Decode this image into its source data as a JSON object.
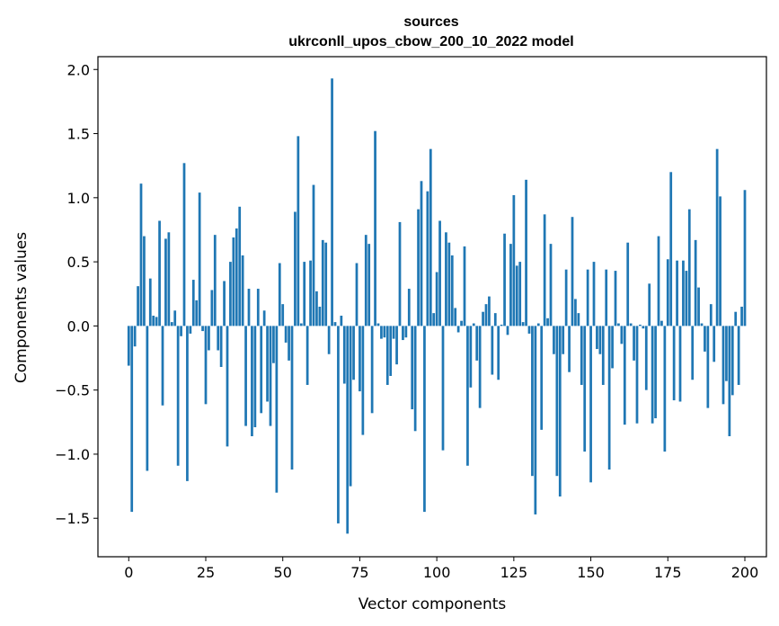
{
  "chart_data": {
    "type": "bar",
    "title": "sources",
    "subtitle": "ukrconll_upos_cbow_200_10_2022 model",
    "xlabel": "Vector components",
    "ylabel": "Components values",
    "xlim": [
      -10,
      207
    ],
    "ylim": [
      -1.8,
      2.1
    ],
    "xticks": [
      0,
      25,
      50,
      75,
      100,
      125,
      150,
      175,
      200
    ],
    "yticks": [
      -1.5,
      -1.0,
      -0.5,
      0.0,
      0.5,
      1.0,
      1.5,
      2.0
    ],
    "xtick_labels": [
      "0",
      "25",
      "50",
      "75",
      "100",
      "125",
      "150",
      "175",
      "200"
    ],
    "ytick_labels": [
      "−1.5",
      "−1.0",
      "−0.5",
      "0.0",
      "0.5",
      "1.0",
      "1.5",
      "2.0"
    ],
    "bar_color": "#1f77b4",
    "values": [
      -0.31,
      -1.45,
      -0.16,
      0.31,
      1.11,
      0.7,
      -1.13,
      0.37,
      0.08,
      0.07,
      0.82,
      -0.62,
      0.68,
      0.73,
      0.03,
      0.12,
      -1.09,
      -0.08,
      1.27,
      -1.21,
      -0.06,
      0.36,
      0.2,
      1.04,
      -0.04,
      -0.61,
      -0.19,
      0.28,
      0.71,
      -0.19,
      -0.32,
      0.35,
      -0.94,
      0.5,
      0.69,
      0.76,
      0.93,
      0.55,
      -0.78,
      0.29,
      -0.86,
      -0.79,
      0.29,
      -0.68,
      0.12,
      -0.59,
      -0.78,
      -0.29,
      -1.3,
      0.49,
      0.17,
      -0.13,
      -0.27,
      -1.12,
      0.89,
      1.48,
      0.02,
      0.5,
      -0.46,
      0.51,
      1.1,
      0.27,
      0.15,
      0.67,
      0.65,
      -0.22,
      1.93,
      0.03,
      -1.54,
      0.08,
      -0.45,
      -1.62,
      -1.25,
      -0.42,
      0.49,
      -0.51,
      -0.85,
      0.71,
      0.64,
      -0.68,
      1.52,
      0.02,
      -0.1,
      -0.09,
      -0.46,
      -0.39,
      -0.1,
      -0.3,
      0.81,
      -0.11,
      -0.09,
      0.29,
      -0.65,
      -0.82,
      0.91,
      1.13,
      -1.45,
      1.05,
      1.38,
      0.1,
      0.42,
      0.82,
      -0.97,
      0.73,
      0.65,
      0.55,
      0.14,
      -0.05,
      0.04,
      0.62,
      -1.09,
      -0.48,
      0.02,
      -0.27,
      -0.64,
      0.11,
      0.17,
      0.23,
      -0.38,
      0.1,
      -0.42,
      0.01,
      0.72,
      -0.07,
      0.64,
      1.02,
      0.47,
      0.5,
      0.03,
      1.14,
      -0.06,
      -1.17,
      -1.47,
      0.02,
      -0.81,
      0.87,
      0.06,
      0.64,
      -0.22,
      -1.17,
      -1.33,
      -0.22,
      0.44,
      -0.36,
      0.85,
      0.21,
      0.1,
      -0.46,
      -0.98,
      0.44,
      -1.22,
      0.5,
      -0.18,
      -0.22,
      -0.46,
      0.44,
      -1.12,
      -0.33,
      0.43,
      0.02,
      -0.14,
      -0.77,
      0.65,
      0.02,
      -0.27,
      -0.76,
      0.01,
      -0.02,
      -0.5,
      0.33,
      -0.76,
      -0.72,
      0.7,
      0.04,
      -0.98,
      0.52,
      1.2,
      -0.58,
      0.51,
      -0.59,
      0.51,
      0.43,
      0.91,
      -0.42,
      0.67,
      0.3,
      0.02,
      -0.2,
      -0.64,
      0.17,
      -0.28,
      1.38,
      1.01,
      -0.61,
      -0.43,
      -0.86,
      -0.54,
      0.11,
      -0.46,
      0.15,
      1.06
    ]
  }
}
